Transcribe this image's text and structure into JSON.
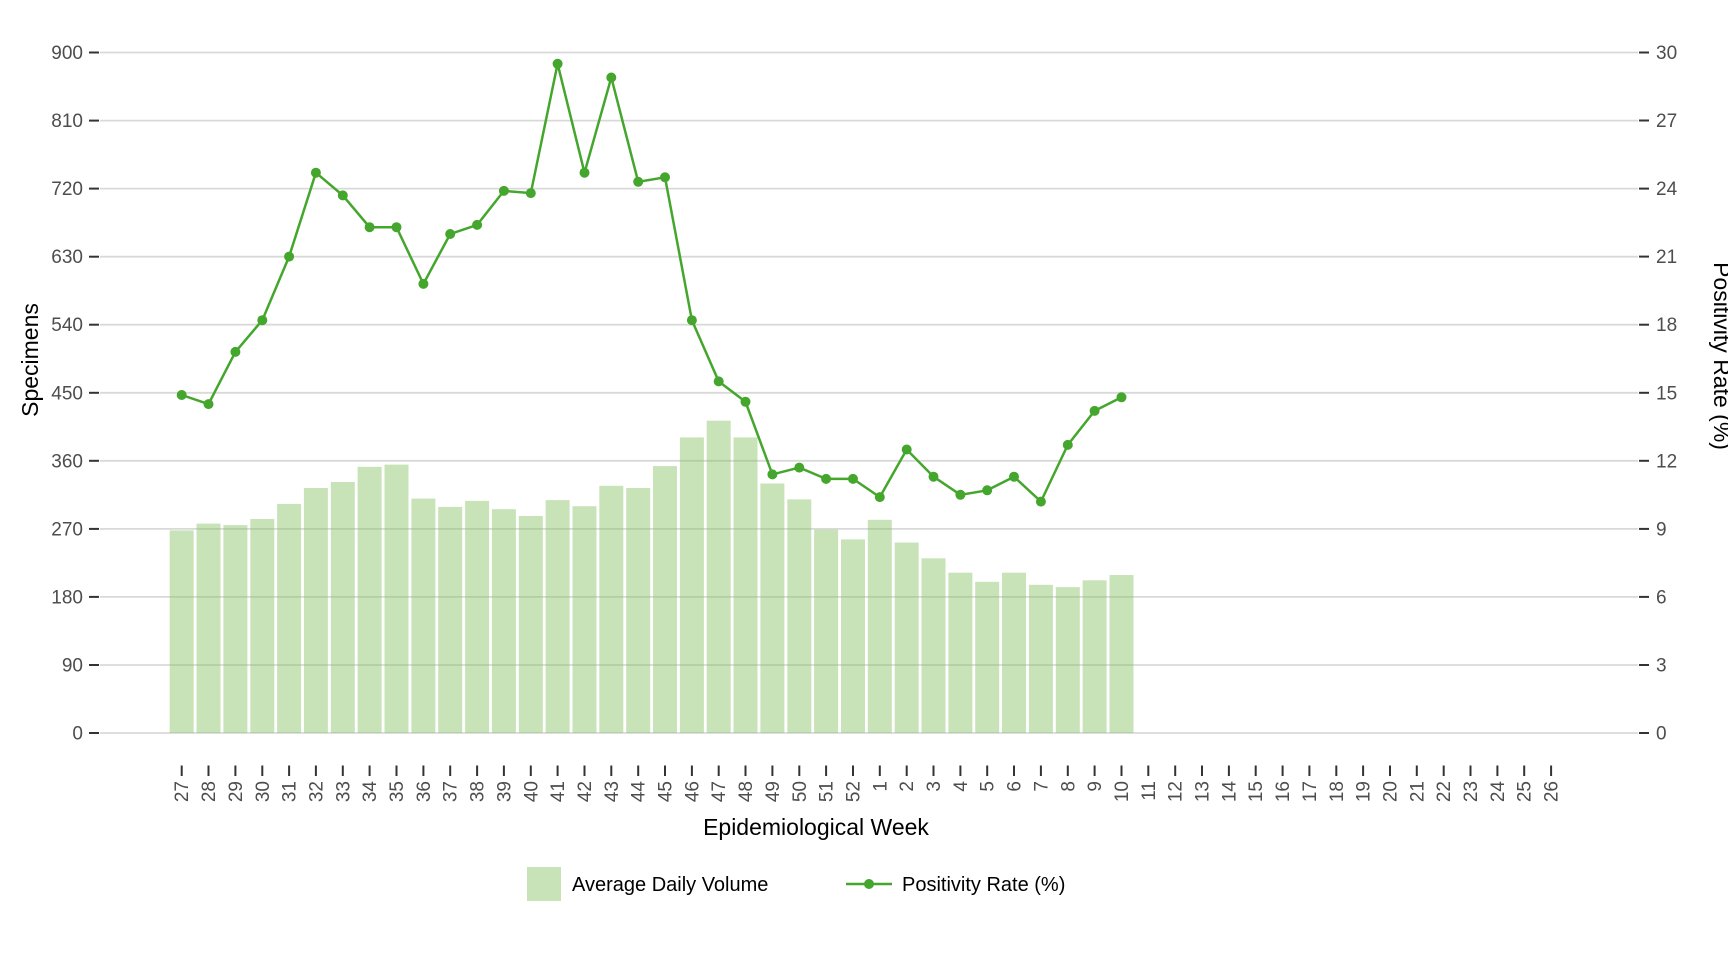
{
  "page": {
    "background": "#ffffff"
  },
  "chart_data": {
    "type": "bar+line",
    "title": "",
    "x_axis": {
      "label": "Epidemiological Week",
      "categories": [
        "27",
        "28",
        "29",
        "30",
        "31",
        "32",
        "33",
        "34",
        "35",
        "36",
        "37",
        "38",
        "39",
        "40",
        "41",
        "42",
        "43",
        "44",
        "45",
        "46",
        "47",
        "48",
        "49",
        "50",
        "51",
        "52",
        "1",
        "2",
        "3",
        "4",
        "5",
        "6",
        "7",
        "8",
        "9",
        "10",
        "11",
        "12",
        "13",
        "14",
        "15",
        "16",
        "17",
        "18",
        "19",
        "20",
        "21",
        "22",
        "23",
        "24",
        "25",
        "26"
      ]
    },
    "left_axis": {
      "label": "Specimens",
      "ticks": [
        0,
        90,
        180,
        270,
        360,
        450,
        540,
        630,
        720,
        810,
        900
      ],
      "range": [
        0,
        900
      ]
    },
    "right_axis": {
      "label": "Positivity Rate (%)",
      "ticks": [
        0,
        3,
        6,
        9,
        12,
        15,
        18,
        21,
        24,
        27,
        30
      ],
      "range": [
        0,
        30
      ]
    },
    "grid": true,
    "legend_position": "bottom",
    "colors": {
      "bar_fill": "#88c263",
      "bar_fill_opacity": 0.45,
      "line": "#44a62c",
      "gridline": "#d9d9d9",
      "tick": "#333333",
      "tick_label": "#4d4d4d"
    },
    "series": [
      {
        "name": "Average Daily Volume",
        "type": "bar",
        "axis": "left",
        "values": [
          268,
          277,
          275,
          283,
          303,
          324,
          332,
          352,
          355,
          310,
          299,
          307,
          296,
          287,
          308,
          300,
          327,
          324,
          353,
          391,
          413,
          391,
          330,
          309,
          269,
          256,
          282,
          252,
          231,
          212,
          200,
          212,
          196,
          193,
          202,
          209
        ]
      },
      {
        "name": "Positivity Rate (%)",
        "type": "line",
        "axis": "right",
        "values": [
          14.9,
          14.5,
          16.8,
          18.2,
          21.0,
          24.7,
          23.7,
          22.3,
          22.3,
          19.8,
          22.0,
          22.4,
          23.9,
          23.8,
          29.5,
          24.7,
          28.9,
          24.3,
          24.5,
          18.2,
          15.5,
          14.6,
          11.4,
          11.7,
          11.2,
          11.2,
          10.4,
          12.5,
          11.3,
          10.5,
          10.7,
          11.3,
          10.2,
          12.7,
          14.2,
          14.8
        ]
      }
    ]
  }
}
